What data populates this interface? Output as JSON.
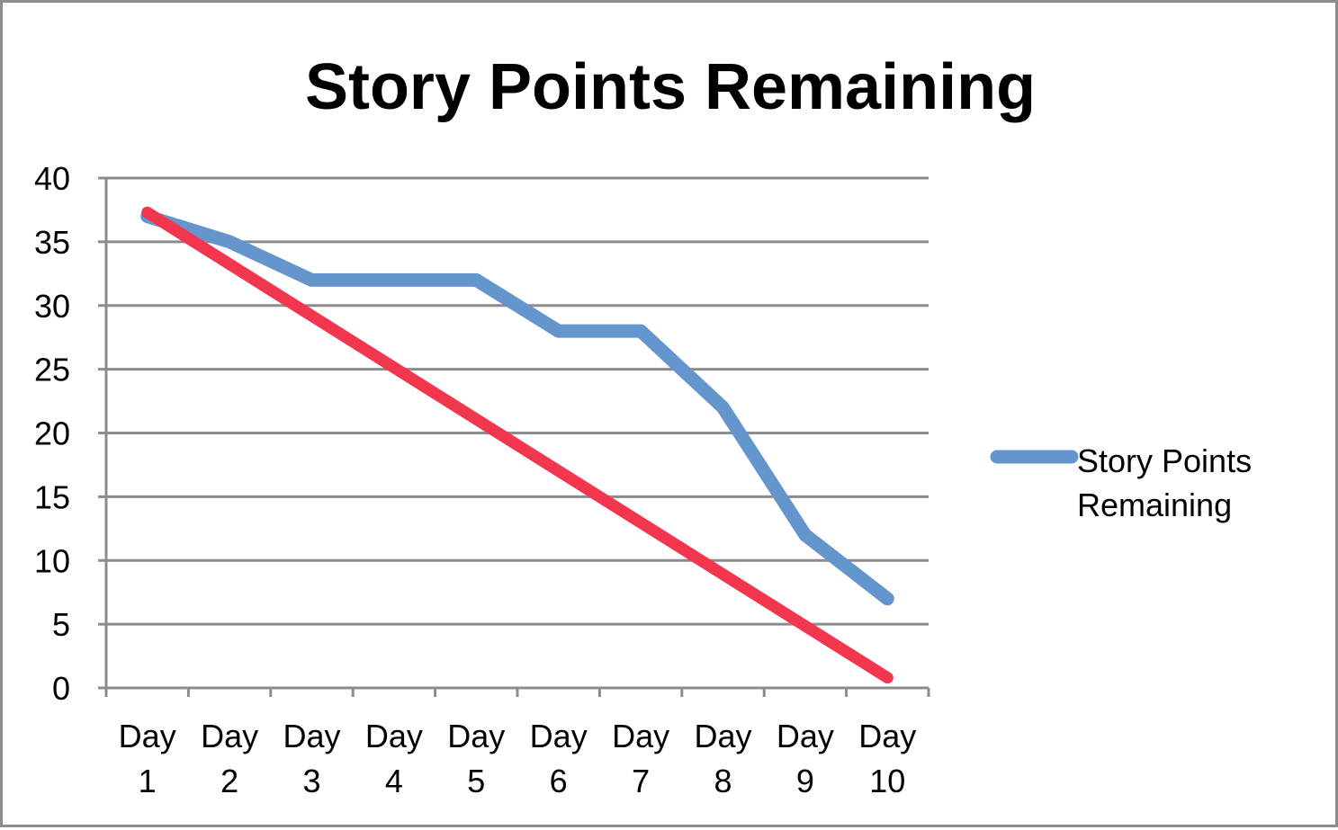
{
  "chart_data": {
    "type": "line",
    "title": "Story Points Remaining",
    "xlabel": "",
    "ylabel": "",
    "categories": [
      [
        "Day",
        "1"
      ],
      [
        "Day",
        "2"
      ],
      [
        "Day",
        "3"
      ],
      [
        "Day",
        "4"
      ],
      [
        "Day",
        "5"
      ],
      [
        "Day",
        "6"
      ],
      [
        "Day",
        "7"
      ],
      [
        "Day",
        "8"
      ],
      [
        "Day",
        "9"
      ],
      [
        "Day",
        "10"
      ]
    ],
    "ylim": [
      0,
      40
    ],
    "yticks": [
      "0",
      "5",
      "10",
      "15",
      "20",
      "25",
      "30",
      "35",
      "40"
    ],
    "grid": "horizontal",
    "legend_position": "right",
    "series": [
      {
        "name": "Story Points Remaining",
        "legend_lines": [
          "Story Points",
          "Remaining"
        ],
        "color": "#6495cd",
        "values": [
          37,
          35,
          32,
          32,
          32,
          28,
          28,
          22,
          12,
          7
        ]
      },
      {
        "color": "#f2364d",
        "shown_in_legend": false,
        "trend": {
          "start": [
            1,
            37.3
          ],
          "end": [
            10,
            0.8
          ]
        }
      }
    ],
    "colors": {
      "grid": "#8c8c8c",
      "axis": "#8c8c8c",
      "border": "#8c8c8c"
    }
  }
}
